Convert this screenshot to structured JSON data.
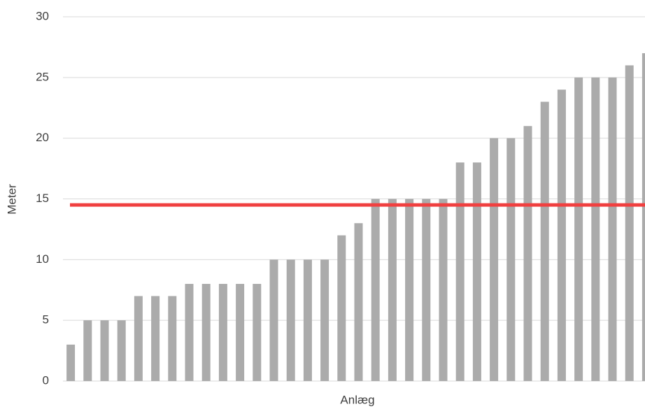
{
  "chart_data": {
    "type": "bar",
    "x_label": "Anlæg",
    "y_label": "Meter",
    "categories": [
      null,
      null,
      null,
      null,
      null,
      null,
      null,
      null,
      null,
      null,
      null,
      null,
      null,
      null,
      null,
      null,
      null,
      null,
      null,
      null,
      null,
      null,
      null,
      null,
      null,
      null,
      null,
      null,
      null,
      null,
      null,
      null,
      null,
      null,
      null
    ],
    "values": [
      3,
      5,
      5,
      5,
      7,
      7,
      7,
      8,
      8,
      8,
      8,
      8,
      10,
      10,
      10,
      10,
      12,
      13,
      15,
      15,
      15,
      15,
      15,
      18,
      18,
      20,
      20,
      21,
      23,
      24,
      25,
      25,
      25,
      26,
      27
    ],
    "color": "#ababab",
    "reference_line": {
      "value": 14.5,
      "color": "#f04040"
    },
    "ylim": [
      0,
      30
    ],
    "yticks": [
      0,
      5,
      10,
      15,
      20,
      25,
      30
    ],
    "grid": true
  }
}
